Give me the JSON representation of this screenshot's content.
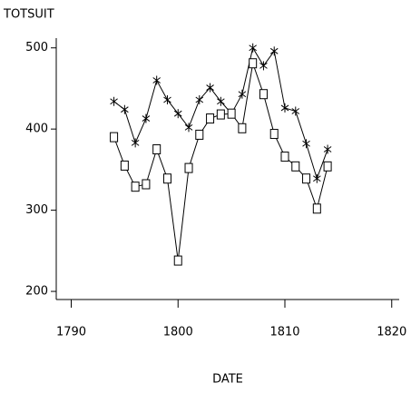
{
  "chart_data": {
    "type": "line",
    "y_label": "TOTSUIT",
    "x_label": "DATE",
    "x": [
      1794,
      1795,
      1796,
      1797,
      1798,
      1799,
      1800,
      1801,
      1802,
      1803,
      1804,
      1805,
      1806,
      1807,
      1808,
      1809,
      1810,
      1811,
      1812,
      1813,
      1814
    ],
    "series": [
      {
        "color": "#000000",
        "marker": "asterisk",
        "values": [
          434,
          424,
          383,
          413,
          460,
          436,
          419,
          402,
          436,
          451,
          434,
          419,
          443,
          500,
          478,
          496,
          426,
          422,
          382,
          339,
          375
        ]
      },
      {
        "color": "#000000",
        "marker": "square",
        "values": [
          390,
          355,
          329,
          332,
          375,
          339,
          238,
          352,
          393,
          413,
          418,
          419,
          401,
          481,
          443,
          394,
          366,
          354,
          339,
          302,
          354
        ]
      }
    ],
    "xlim": [
      1788.6,
      1820.7
    ],
    "xticks": [
      1790,
      1800,
      1810,
      1820
    ],
    "ylim": [
      190,
      512
    ],
    "yticks": [
      200,
      300,
      400,
      500
    ],
    "grid": false
  }
}
